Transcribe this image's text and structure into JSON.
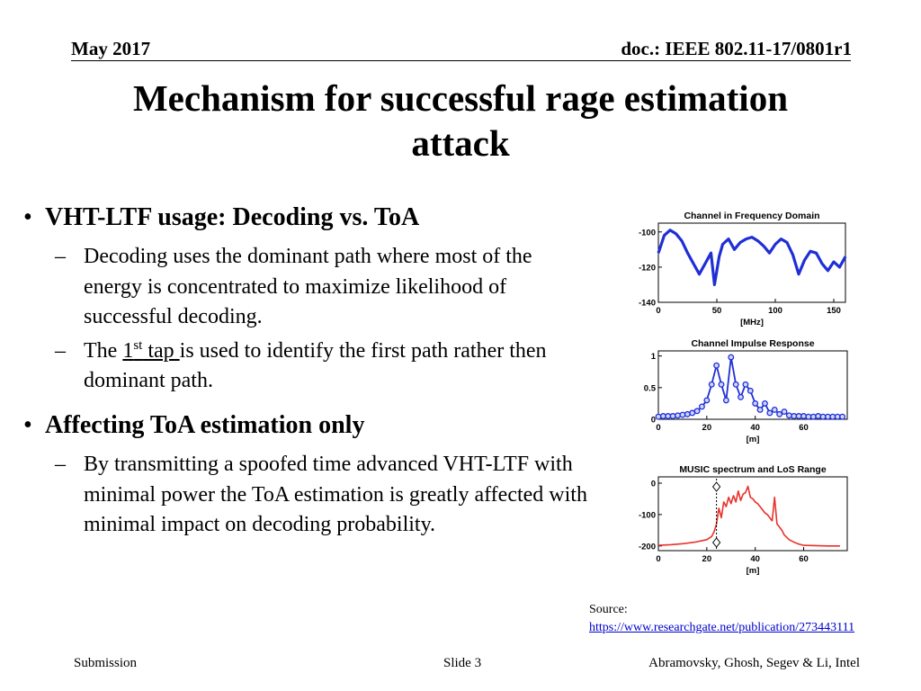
{
  "header": {
    "date": "May 2017",
    "doc": "doc.: IEEE 802.11-17/0801r1"
  },
  "title": {
    "line1": "Mechanism for successful rage estimation",
    "line2": "attack"
  },
  "bullets": [
    {
      "text": "VHT-LTF usage: Decoding vs. ToA",
      "sub": [
        {
          "text": "Decoding uses the dominant path where most of the energy is concentrated to maximize likelihood of successful decoding."
        },
        {
          "pre": "The ",
          "num": "1",
          "sup": "st",
          "tap": " tap ",
          "post": "is used to identify the first path rather then dominant path."
        }
      ]
    },
    {
      "text": "Affecting ToA estimation only",
      "sub": [
        {
          "text": "By transmitting a spoofed time advanced VHT-LTF with minimal power the ToA estimation is greatly affected with minimal impact on decoding probability."
        }
      ]
    }
  ],
  "source": {
    "label": "Source:",
    "url": "https://www.researchgate.net/publication/273443111"
  },
  "footer": {
    "left": "Submission",
    "center": "Slide 3",
    "right": "Abramovsky, Ghosh, Segev & Li, Intel"
  },
  "colors": {
    "series_blue": "#1f2fd6",
    "series_red": "#e8322a"
  },
  "chart_data": [
    {
      "type": "line",
      "title": "Channel in Frequency Domain",
      "xlabel": "[MHz]",
      "ylabel": "",
      "xlim": [
        0,
        160
      ],
      "ylim": [
        -140,
        -95
      ],
      "xticks": [
        "0",
        "50",
        "100",
        "150"
      ],
      "yticks": [
        "-100",
        "-120",
        "-140"
      ],
      "x": [
        0,
        5,
        10,
        15,
        20,
        25,
        30,
        35,
        40,
        45,
        48,
        52,
        55,
        60,
        65,
        70,
        75,
        80,
        85,
        90,
        95,
        100,
        105,
        110,
        115,
        120,
        125,
        130,
        135,
        140,
        145,
        150,
        155,
        160
      ],
      "series": [
        {
          "values": [
            -112,
            -102,
            -99,
            -101,
            -105,
            -112,
            -118,
            -124,
            -118,
            -112,
            -130,
            -114,
            -107,
            -104,
            -110,
            -106,
            -104,
            -103,
            -105,
            -108,
            -112,
            -107,
            -104,
            -106,
            -113,
            -124,
            -116,
            -111,
            -112,
            -118,
            -122,
            -117,
            -120,
            -114
          ]
        }
      ]
    },
    {
      "type": "scatter",
      "title": "Channel Impulse Response",
      "xlabel": "[m]",
      "ylabel": "",
      "xlim": [
        0,
        78
      ],
      "ylim": [
        0,
        1.08
      ],
      "xticks": [
        "0",
        "20",
        "40",
        "60"
      ],
      "yticks": [
        "1",
        "0.5",
        "0"
      ],
      "x": [
        0,
        2,
        4,
        6,
        8,
        10,
        12,
        14,
        16,
        18,
        20,
        22,
        24,
        26,
        28,
        30,
        32,
        34,
        36,
        38,
        40,
        42,
        44,
        46,
        48,
        50,
        52,
        54,
        56,
        58,
        60,
        62,
        64,
        66,
        68,
        70,
        72,
        74,
        76
      ],
      "series": [
        {
          "values": [
            0.04,
            0.05,
            0.05,
            0.05,
            0.06,
            0.07,
            0.08,
            0.1,
            0.13,
            0.2,
            0.3,
            0.55,
            0.85,
            0.55,
            0.3,
            0.98,
            0.55,
            0.35,
            0.55,
            0.45,
            0.25,
            0.15,
            0.25,
            0.1,
            0.15,
            0.08,
            0.12,
            0.06,
            0.05,
            0.05,
            0.05,
            0.04,
            0.04,
            0.05,
            0.04,
            0.04,
            0.04,
            0.04,
            0.04
          ]
        }
      ]
    },
    {
      "type": "line",
      "title": "MUSIC spectrum and LoS Range",
      "xlabel": "[m]",
      "ylabel": "",
      "xlim": [
        0,
        78
      ],
      "ylim": [
        -215,
        20
      ],
      "xticks": [
        "0",
        "20",
        "40",
        "60"
      ],
      "yticks": [
        "0",
        "-100",
        "-200"
      ],
      "x": [
        0,
        5,
        10,
        15,
        20,
        22,
        23,
        24,
        25,
        26,
        27,
        28,
        29,
        30,
        31,
        32,
        33,
        34,
        35,
        36,
        37,
        38,
        39,
        40,
        41,
        42,
        43,
        44,
        45,
        46,
        47,
        48,
        49,
        50,
        51,
        52,
        54,
        56,
        58,
        60,
        65,
        70,
        75
      ],
      "series": [
        {
          "values": [
            -198,
            -196,
            -193,
            -188,
            -180,
            -170,
            -155,
            -130,
            -80,
            -110,
            -60,
            -75,
            -45,
            -65,
            -40,
            -60,
            -25,
            -55,
            -35,
            -30,
            -10,
            -45,
            -50,
            -60,
            -65,
            -75,
            -85,
            -95,
            -100,
            -110,
            -120,
            -45,
            -130,
            -140,
            -150,
            -165,
            -180,
            -188,
            -194,
            -198,
            -199,
            -200,
            -200
          ]
        }
      ],
      "marker_x": 24
    }
  ]
}
